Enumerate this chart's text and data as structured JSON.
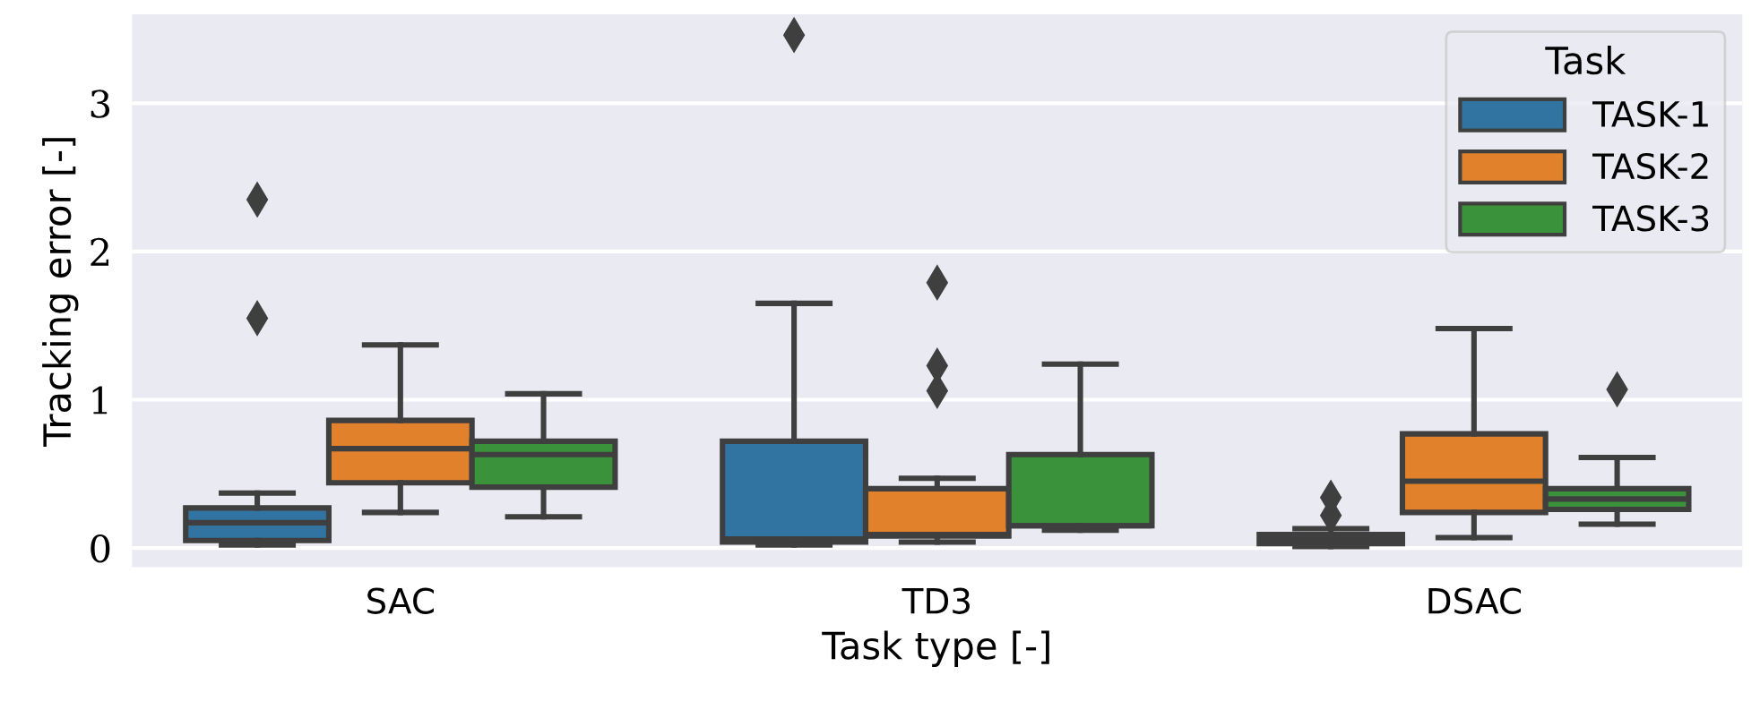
{
  "chart_data": {
    "type": "box",
    "xlabel": "Task type [-]",
    "ylabel": "Tracking error [-]",
    "legend_title": "Task",
    "categories": [
      "SAC",
      "TD3",
      "DSAC"
    ],
    "ylim": [
      -0.13,
      3.6
    ],
    "yticks": [
      0,
      1,
      2,
      3
    ],
    "grid": "y",
    "legend": "top right",
    "marker": "diamond",
    "series": [
      {
        "name": "TASK-1",
        "color": "#3274a1",
        "boxes": [
          {
            "low": 0.02,
            "q1": 0.05,
            "median": 0.17,
            "q3": 0.27,
            "high": 0.37,
            "outliers": [
              1.55,
              2.35
            ]
          },
          {
            "low": 0.02,
            "q1": 0.04,
            "median": 0.06,
            "q3": 0.72,
            "high": 1.65,
            "outliers": [
              3.46
            ]
          },
          {
            "low": 0.01,
            "q1": 0.03,
            "median": 0.06,
            "q3": 0.09,
            "high": 0.13,
            "outliers": [
              0.22,
              0.34
            ]
          }
        ]
      },
      {
        "name": "TASK-2",
        "color": "#e1812c",
        "boxes": [
          {
            "low": 0.24,
            "q1": 0.44,
            "median": 0.67,
            "q3": 0.86,
            "high": 1.37
          },
          {
            "low": 0.04,
            "q1": 0.08,
            "median": 0.09,
            "q3": 0.4,
            "high": 0.47,
            "outliers": [
              1.06,
              1.23,
              1.79
            ]
          },
          {
            "low": 0.07,
            "q1": 0.24,
            "median": 0.45,
            "q3": 0.77,
            "high": 1.48
          }
        ]
      },
      {
        "name": "TASK-3",
        "color": "#3a923a",
        "boxes": [
          {
            "low": 0.21,
            "q1": 0.41,
            "median": 0.63,
            "q3": 0.72,
            "high": 1.04
          },
          {
            "low": 0.12,
            "q1": 0.15,
            "median": 0.15,
            "q3": 0.63,
            "high": 1.24
          },
          {
            "low": 0.16,
            "q1": 0.26,
            "median": 0.33,
            "q3": 0.4,
            "high": 0.61,
            "outliers": [
              1.07
            ]
          }
        ]
      }
    ]
  }
}
